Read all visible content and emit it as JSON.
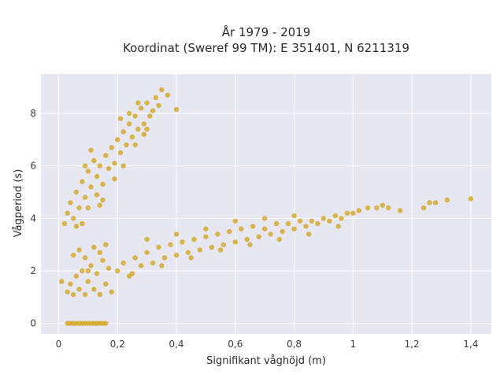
{
  "chart_data": {
    "type": "scatter",
    "title": "År 1979 - 2019",
    "subtitle": "Koordinat (Sweref 99 TM): E 351401, N 6211319",
    "xlabel": "Signifikant våghöjd (m)",
    "ylabel": "Vågperiod (s)",
    "xlim": [
      -0.06,
      1.47
    ],
    "ylim": [
      -0.4,
      9.5
    ],
    "x_ticks": [
      {
        "value": 0,
        "label": "0"
      },
      {
        "value": 0.2,
        "label": "0,2"
      },
      {
        "value": 0.4,
        "label": "0,4"
      },
      {
        "value": 0.6,
        "label": "0,6"
      },
      {
        "value": 0.8,
        "label": "0,8"
      },
      {
        "value": 1.0,
        "label": "1"
      },
      {
        "value": 1.2,
        "label": "1,2"
      },
      {
        "value": 1.4,
        "label": "1,4"
      }
    ],
    "y_ticks": [
      {
        "value": 0,
        "label": "0"
      },
      {
        "value": 2,
        "label": "2"
      },
      {
        "value": 4,
        "label": "4"
      },
      {
        "value": 6,
        "label": "6"
      },
      {
        "value": 8,
        "label": "8"
      }
    ],
    "grid": true,
    "point_color": "#D4A520",
    "background_color": "#E6E7F0",
    "series": [
      {
        "values": [
          {
            "x": 0.03,
            "y": 0
          },
          {
            "x": 0.04,
            "y": 0
          },
          {
            "x": 0.05,
            "y": 0
          },
          {
            "x": 0.06,
            "y": 0
          },
          {
            "x": 0.07,
            "y": 0
          },
          {
            "x": 0.08,
            "y": 0
          },
          {
            "x": 0.09,
            "y": 0
          },
          {
            "x": 0.1,
            "y": 0
          },
          {
            "x": 0.11,
            "y": 0
          },
          {
            "x": 0.12,
            "y": 0
          },
          {
            "x": 0.13,
            "y": 0
          },
          {
            "x": 0.14,
            "y": 0
          },
          {
            "x": 0.15,
            "y": 0
          },
          {
            "x": 0.16,
            "y": 0
          },
          {
            "x": 0.01,
            "y": 1.6
          },
          {
            "x": 0.03,
            "y": 1.2
          },
          {
            "x": 0.04,
            "y": 1.5
          },
          {
            "x": 0.05,
            "y": 1.1
          },
          {
            "x": 0.06,
            "y": 1.8
          },
          {
            "x": 0.07,
            "y": 1.3
          },
          {
            "x": 0.08,
            "y": 2.0
          },
          {
            "x": 0.09,
            "y": 1.1
          },
          {
            "x": 0.1,
            "y": 1.6
          },
          {
            "x": 0.11,
            "y": 2.2
          },
          {
            "x": 0.12,
            "y": 1.3
          },
          {
            "x": 0.13,
            "y": 1.9
          },
          {
            "x": 0.14,
            "y": 1.1
          },
          {
            "x": 0.15,
            "y": 2.4
          },
          {
            "x": 0.16,
            "y": 1.5
          },
          {
            "x": 0.17,
            "y": 2.1
          },
          {
            "x": 0.18,
            "y": 1.2
          },
          {
            "x": 0.05,
            "y": 2.6
          },
          {
            "x": 0.07,
            "y": 2.8
          },
          {
            "x": 0.09,
            "y": 2.5
          },
          {
            "x": 0.12,
            "y": 2.9
          },
          {
            "x": 0.14,
            "y": 2.7
          },
          {
            "x": 0.16,
            "y": 3.0
          },
          {
            "x": 0.1,
            "y": 2.0
          },
          {
            "x": 0.2,
            "y": 2.0
          },
          {
            "x": 0.22,
            "y": 2.3
          },
          {
            "x": 0.24,
            "y": 1.8
          },
          {
            "x": 0.26,
            "y": 2.5
          },
          {
            "x": 0.28,
            "y": 2.2
          },
          {
            "x": 0.3,
            "y": 2.7
          },
          {
            "x": 0.32,
            "y": 2.3
          },
          {
            "x": 0.34,
            "y": 2.9
          },
          {
            "x": 0.36,
            "y": 2.5
          },
          {
            "x": 0.38,
            "y": 3.0
          },
          {
            "x": 0.4,
            "y": 2.6
          },
          {
            "x": 0.42,
            "y": 3.1
          },
          {
            "x": 0.44,
            "y": 2.7
          },
          {
            "x": 0.46,
            "y": 3.2
          },
          {
            "x": 0.48,
            "y": 2.8
          },
          {
            "x": 0.5,
            "y": 3.3
          },
          {
            "x": 0.52,
            "y": 2.9
          },
          {
            "x": 0.54,
            "y": 3.4
          },
          {
            "x": 0.56,
            "y": 3.0
          },
          {
            "x": 0.58,
            "y": 3.5
          },
          {
            "x": 0.6,
            "y": 3.1
          },
          {
            "x": 0.62,
            "y": 3.6
          },
          {
            "x": 0.64,
            "y": 3.2
          },
          {
            "x": 0.66,
            "y": 3.7
          },
          {
            "x": 0.68,
            "y": 3.3
          },
          {
            "x": 0.7,
            "y": 3.6
          },
          {
            "x": 0.72,
            "y": 3.4
          },
          {
            "x": 0.74,
            "y": 3.8
          },
          {
            "x": 0.76,
            "y": 3.5
          },
          {
            "x": 0.78,
            "y": 3.8
          },
          {
            "x": 0.8,
            "y": 3.6
          },
          {
            "x": 0.82,
            "y": 3.9
          },
          {
            "x": 0.84,
            "y": 3.7
          },
          {
            "x": 0.86,
            "y": 3.9
          },
          {
            "x": 0.88,
            "y": 3.8
          },
          {
            "x": 0.9,
            "y": 4.0
          },
          {
            "x": 0.92,
            "y": 3.9
          },
          {
            "x": 0.94,
            "y": 4.1
          },
          {
            "x": 0.96,
            "y": 4.0
          },
          {
            "x": 0.98,
            "y": 4.2
          },
          {
            "x": 1.0,
            "y": 4.2
          },
          {
            "x": 1.02,
            "y": 4.3
          },
          {
            "x": 1.05,
            "y": 4.4
          },
          {
            "x": 1.08,
            "y": 4.4
          },
          {
            "x": 1.1,
            "y": 4.5
          },
          {
            "x": 1.12,
            "y": 4.4
          },
          {
            "x": 1.16,
            "y": 4.3
          },
          {
            "x": 1.24,
            "y": 4.4
          },
          {
            "x": 1.26,
            "y": 4.6
          },
          {
            "x": 1.28,
            "y": 4.6
          },
          {
            "x": 1.32,
            "y": 4.7
          },
          {
            "x": 1.4,
            "y": 4.75
          },
          {
            "x": 0.25,
            "y": 1.9
          },
          {
            "x": 0.35,
            "y": 2.2
          },
          {
            "x": 0.45,
            "y": 2.5
          },
          {
            "x": 0.55,
            "y": 2.8
          },
          {
            "x": 0.65,
            "y": 3.0
          },
          {
            "x": 0.75,
            "y": 3.2
          },
          {
            "x": 0.85,
            "y": 3.4
          },
          {
            "x": 0.95,
            "y": 3.7
          },
          {
            "x": 0.3,
            "y": 3.2
          },
          {
            "x": 0.4,
            "y": 3.4
          },
          {
            "x": 0.5,
            "y": 3.6
          },
          {
            "x": 0.6,
            "y": 3.9
          },
          {
            "x": 0.7,
            "y": 4.0
          },
          {
            "x": 0.8,
            "y": 4.1
          },
          {
            "x": 0.02,
            "y": 3.8
          },
          {
            "x": 0.03,
            "y": 4.2
          },
          {
            "x": 0.04,
            "y": 4.6
          },
          {
            "x": 0.05,
            "y": 4.0
          },
          {
            "x": 0.06,
            "y": 5.0
          },
          {
            "x": 0.07,
            "y": 4.4
          },
          {
            "x": 0.08,
            "y": 5.4
          },
          {
            "x": 0.09,
            "y": 4.8
          },
          {
            "x": 0.1,
            "y": 5.8
          },
          {
            "x": 0.11,
            "y": 5.2
          },
          {
            "x": 0.12,
            "y": 6.2
          },
          {
            "x": 0.13,
            "y": 5.6
          },
          {
            "x": 0.14,
            "y": 6.0
          },
          {
            "x": 0.15,
            "y": 5.3
          },
          {
            "x": 0.16,
            "y": 6.4
          },
          {
            "x": 0.17,
            "y": 5.9
          },
          {
            "x": 0.18,
            "y": 6.7
          },
          {
            "x": 0.19,
            "y": 6.1
          },
          {
            "x": 0.2,
            "y": 7.0
          },
          {
            "x": 0.21,
            "y": 6.5
          },
          {
            "x": 0.22,
            "y": 7.3
          },
          {
            "x": 0.23,
            "y": 6.8
          },
          {
            "x": 0.24,
            "y": 7.6
          },
          {
            "x": 0.25,
            "y": 7.1
          },
          {
            "x": 0.26,
            "y": 7.9
          },
          {
            "x": 0.27,
            "y": 7.4
          },
          {
            "x": 0.28,
            "y": 8.2
          },
          {
            "x": 0.29,
            "y": 7.6
          },
          {
            "x": 0.3,
            "y": 8.4
          },
          {
            "x": 0.31,
            "y": 7.9
          },
          {
            "x": 0.32,
            "y": 8.1
          },
          {
            "x": 0.33,
            "y": 8.6
          },
          {
            "x": 0.34,
            "y": 8.3
          },
          {
            "x": 0.35,
            "y": 8.9
          },
          {
            "x": 0.37,
            "y": 8.7
          },
          {
            "x": 0.4,
            "y": 8.15
          },
          {
            "x": 0.06,
            "y": 3.7
          },
          {
            "x": 0.08,
            "y": 3.8
          },
          {
            "x": 0.1,
            "y": 4.4
          },
          {
            "x": 0.13,
            "y": 4.9
          },
          {
            "x": 0.15,
            "y": 4.7
          },
          {
            "x": 0.09,
            "y": 6.0
          },
          {
            "x": 0.11,
            "y": 6.6
          },
          {
            "x": 0.14,
            "y": 4.5
          },
          {
            "x": 0.19,
            "y": 5.5
          },
          {
            "x": 0.22,
            "y": 6.0
          },
          {
            "x": 0.26,
            "y": 6.8
          },
          {
            "x": 0.29,
            "y": 7.2
          },
          {
            "x": 0.3,
            "y": 7.4
          },
          {
            "x": 0.27,
            "y": 8.4
          },
          {
            "x": 0.21,
            "y": 7.8
          },
          {
            "x": 0.24,
            "y": 8.0
          }
        ]
      }
    ]
  }
}
